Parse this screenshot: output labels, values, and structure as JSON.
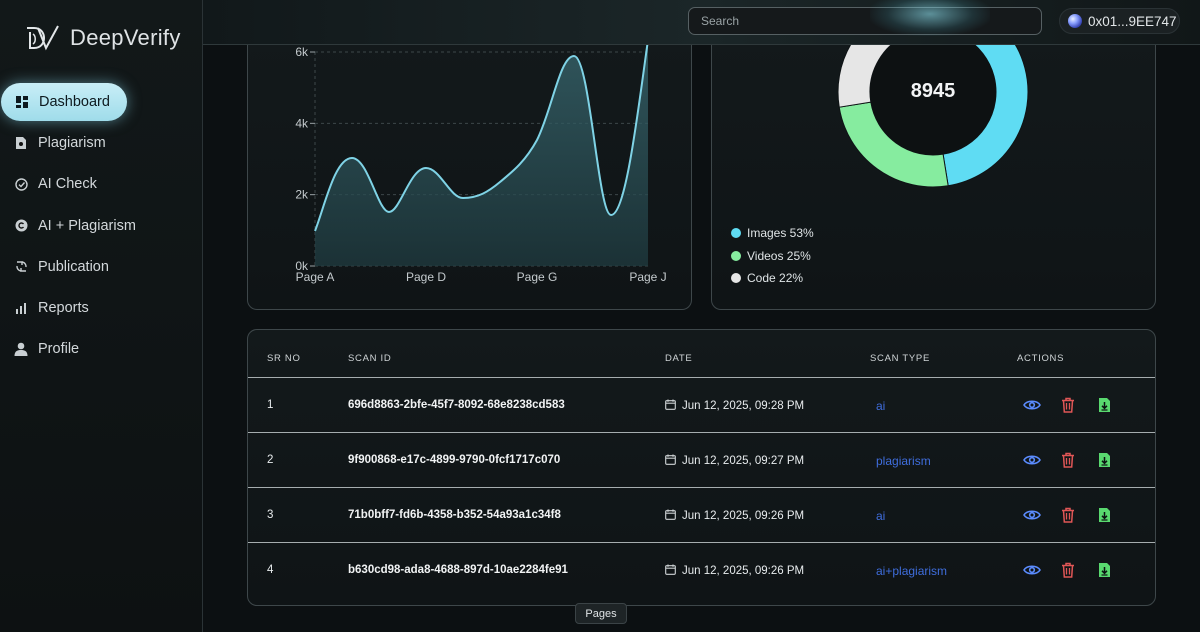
{
  "app": {
    "name": "DeepVerify"
  },
  "sidebar": {
    "items": [
      {
        "label": "Dashboard",
        "icon": "dashboard-icon",
        "active": true
      },
      {
        "label": "Plagiarism",
        "icon": "document-icon"
      },
      {
        "label": "AI Check",
        "icon": "check-circle-icon"
      },
      {
        "label": "AI + Plagiarism",
        "icon": "copyright-icon"
      },
      {
        "label": "Publication",
        "icon": "publication-icon"
      },
      {
        "label": "Reports",
        "icon": "bar-chart-icon"
      },
      {
        "label": "Profile",
        "icon": "user-icon"
      }
    ]
  },
  "header": {
    "search_placeholder": "Search",
    "wallet": "0x01...9EE747"
  },
  "area_chart": {
    "type": "area",
    "categories": [
      "Page A",
      "Page D",
      "Page G",
      "Page J"
    ],
    "y_ticks": [
      "0k",
      "2k",
      "4k",
      "6k"
    ],
    "ylim": [
      0,
      6000
    ],
    "color": "#7fd3e6"
  },
  "donut": {
    "total": "8945",
    "slices": [
      {
        "label": "Images 53%",
        "percent": 53,
        "color": "#5fdcf3"
      },
      {
        "label": "Videos 25%",
        "percent": 25,
        "color": "#86ec9f"
      },
      {
        "label": "Code 22%",
        "percent": 22,
        "color": "#e6e6e6"
      }
    ]
  },
  "table": {
    "headers": {
      "sr": "SR NO",
      "scan": "SCAN ID",
      "date": "DATE",
      "type": "SCAN TYPE",
      "actions": "ACTIONS"
    },
    "rows": [
      {
        "sr": "1",
        "scan": "696d8863-2bfe-45f7-8092-68e8238cd583",
        "date": "Jun 12, 2025, 09:28 PM",
        "type": "ai"
      },
      {
        "sr": "2",
        "scan": "9f900868-e17c-4899-9790-0fcf1717c070",
        "date": "Jun 12, 2025, 09:27 PM",
        "type": "plagiarism"
      },
      {
        "sr": "3",
        "scan": "71b0bff7-fd6b-4358-b352-54a93a1c34f8",
        "date": "Jun 12, 2025, 09:26 PM",
        "type": "ai"
      },
      {
        "sr": "4",
        "scan": "b630cd98-ada8-4688-897d-10ae2284fe91",
        "date": "Jun 12, 2025, 09:26 PM",
        "type": "ai+plagiarism"
      }
    ]
  },
  "tooltip": {
    "label": "Pages"
  },
  "colors": {
    "accent": "#9fdcea",
    "view": "#5b8cff",
    "delete": "#e05656",
    "download": "#59d96f"
  }
}
